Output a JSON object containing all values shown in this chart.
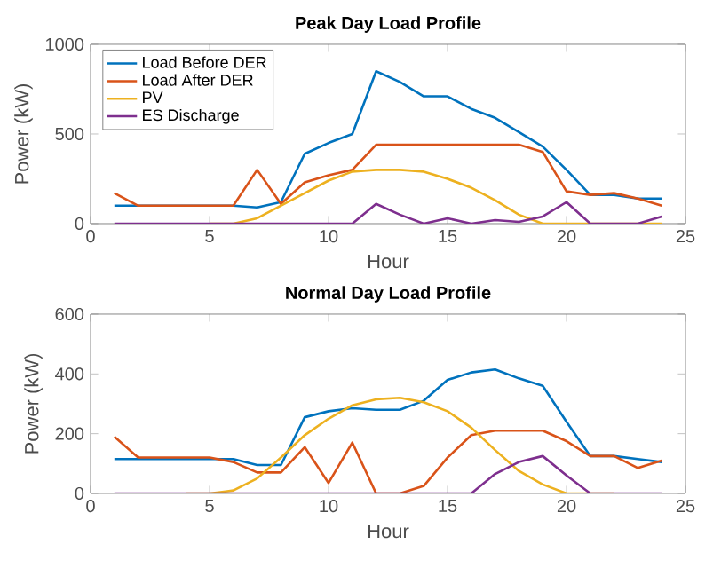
{
  "chart_data": [
    {
      "type": "line",
      "title": "Peak Day Load Profile",
      "xlabel": "Hour",
      "ylabel": "Power (kW)",
      "x": [
        1,
        2,
        3,
        4,
        5,
        6,
        7,
        8,
        9,
        10,
        11,
        12,
        13,
        14,
        15,
        16,
        17,
        18,
        19,
        20,
        21,
        22,
        23,
        24
      ],
      "xlim": [
        0,
        25
      ],
      "ylim": [
        0,
        1000
      ],
      "xticks": [
        0,
        5,
        10,
        15,
        20,
        25
      ],
      "yticks": [
        0,
        500,
        1000
      ],
      "legend": "top left",
      "series": [
        {
          "name": "Load Before DER",
          "color": "#0072bd",
          "values": [
            100,
            100,
            null,
            null,
            null,
            100,
            90,
            120,
            390,
            450,
            500,
            850,
            790,
            710,
            710,
            640,
            590,
            510,
            430,
            300,
            160,
            160,
            140,
            140
          ]
        },
        {
          "name": "Load After DER",
          "color": "#d95319",
          "values": [
            170,
            100,
            100,
            100,
            100,
            100,
            300,
            110,
            230,
            270,
            300,
            440,
            440,
            440,
            440,
            440,
            440,
            440,
            400,
            180,
            160,
            170,
            140,
            100
          ]
        },
        {
          "name": "PV",
          "color": "#edb120",
          "values": [
            null,
            null,
            null,
            null,
            0,
            0,
            30,
            100,
            170,
            240,
            290,
            300,
            300,
            290,
            250,
            200,
            130,
            50,
            0,
            0,
            0,
            0,
            0,
            0
          ]
        },
        {
          "name": "ES Discharge",
          "color": "#7e2f8e",
          "values": [
            0,
            0,
            0,
            0,
            0,
            0,
            0,
            0,
            0,
            0,
            0,
            110,
            50,
            0,
            30,
            0,
            20,
            10,
            40,
            120,
            0,
            0,
            0,
            40
          ]
        }
      ]
    },
    {
      "type": "line",
      "title": "Normal Day Load Profile",
      "xlabel": "Hour",
      "ylabel": "Power (kW)",
      "x": [
        1,
        2,
        3,
        4,
        5,
        6,
        7,
        8,
        9,
        10,
        11,
        12,
        13,
        14,
        15,
        16,
        17,
        18,
        19,
        20,
        21,
        22,
        23,
        24
      ],
      "xlim": [
        0,
        25
      ],
      "ylim": [
        0,
        600
      ],
      "xticks": [
        0,
        5,
        10,
        15,
        20,
        25
      ],
      "yticks": [
        0,
        200,
        400,
        600
      ],
      "series": [
        {
          "color": "#0072bd",
          "values": [
            115,
            115,
            115,
            115,
            115,
            115,
            95,
            95,
            255,
            275,
            285,
            280,
            280,
            310,
            380,
            405,
            415,
            385,
            360,
            240,
            125,
            125,
            115,
            105
          ]
        },
        {
          "color": "#d95319",
          "values": [
            190,
            120,
            120,
            120,
            120,
            105,
            70,
            70,
            155,
            35,
            170,
            0,
            0,
            25,
            120,
            195,
            210,
            210,
            210,
            175,
            125,
            125,
            85,
            110
          ]
        },
        {
          "color": "#edb120",
          "values": [
            null,
            null,
            null,
            0,
            0,
            10,
            50,
            120,
            195,
            250,
            295,
            315,
            320,
            305,
            275,
            220,
            145,
            75,
            30,
            0,
            0,
            0,
            null,
            null
          ]
        },
        {
          "color": "#7e2f8e",
          "values": [
            0,
            0,
            0,
            0,
            0,
            0,
            0,
            0,
            0,
            0,
            0,
            0,
            0,
            0,
            0,
            0,
            65,
            105,
            125,
            60,
            0,
            0,
            0,
            0
          ]
        }
      ]
    }
  ]
}
